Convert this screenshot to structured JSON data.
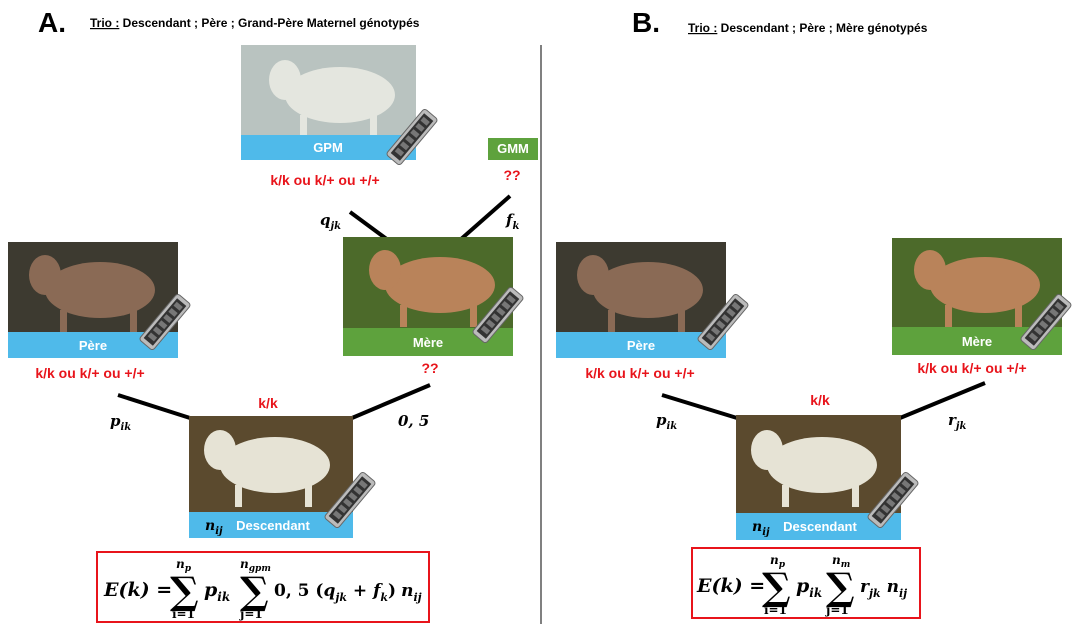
{
  "panel_a": {
    "letter": "A.",
    "trio_label": "Trio :",
    "trio_text": " Descendant ; Père ; Grand-Père Maternel génotypés",
    "nodes": {
      "gpm": {
        "label": "GPM",
        "genotype": "k/k ou k/+ ou +/+"
      },
      "gmm": {
        "label": "GMM",
        "genotype": "??"
      },
      "pere": {
        "label": "Père",
        "genotype": "k/k ou k/+ ou +/+"
      },
      "mere": {
        "label": "Mère",
        "genotype": "??"
      },
      "descendant": {
        "label": "Descendant",
        "genotype": "k/k",
        "weight": {
          "sym": "n",
          "sub": "ij"
        }
      }
    },
    "edges": {
      "q": {
        "sym": "q",
        "sub": "jk"
      },
      "f": {
        "sym": "f",
        "sub": "k"
      },
      "p": {
        "sym": "p",
        "sub": "ik"
      },
      "half": "0, 5"
    },
    "formula": {
      "lhs": "E(k) =",
      "sum_symbol": "∑",
      "sum1": {
        "upper": "n",
        "upper_sub": "p",
        "lower": "i=1"
      },
      "term1": {
        "sym": "p",
        "sub": "ik"
      },
      "sum2": {
        "upper": "n",
        "upper_sub": "gpm",
        "lower": "j=1"
      },
      "coef": "0, 5 (",
      "term2": {
        "sym": "q",
        "sub": "jk"
      },
      "plus": " + ",
      "term3": {
        "sym": "f",
        "sub": "k"
      },
      "close": ")",
      "term4": {
        "sym": "n",
        "sub": "ij"
      }
    }
  },
  "panel_b": {
    "letter": "B.",
    "trio_label": "Trio :",
    "trio_text": " Descendant ; Père ; Mère génotypés",
    "nodes": {
      "pere": {
        "label": "Père",
        "genotype": "k/k ou k/+ ou +/+"
      },
      "mere": {
        "label": "Mère",
        "genotype": "k/k ou k/+ ou +/+"
      },
      "descendant": {
        "label": "Descendant",
        "genotype": "k/k",
        "weight": {
          "sym": "n",
          "sub": "ij"
        }
      }
    },
    "edges": {
      "p": {
        "sym": "p",
        "sub": "ik"
      },
      "r": {
        "sym": "r",
        "sub": "jk"
      }
    },
    "formula": {
      "lhs": "E(k) =",
      "sum_symbol": "∑",
      "sum1": {
        "upper": "n",
        "upper_sub": "p",
        "lower": "i=1"
      },
      "term1": {
        "sym": "p",
        "sub": "ik"
      },
      "sum2": {
        "upper": "n",
        "upper_sub": "m",
        "lower": "j=1"
      },
      "term2": {
        "sym": "r",
        "sub": "jk"
      },
      "term3": {
        "sym": "n",
        "sub": "ij"
      }
    }
  }
}
